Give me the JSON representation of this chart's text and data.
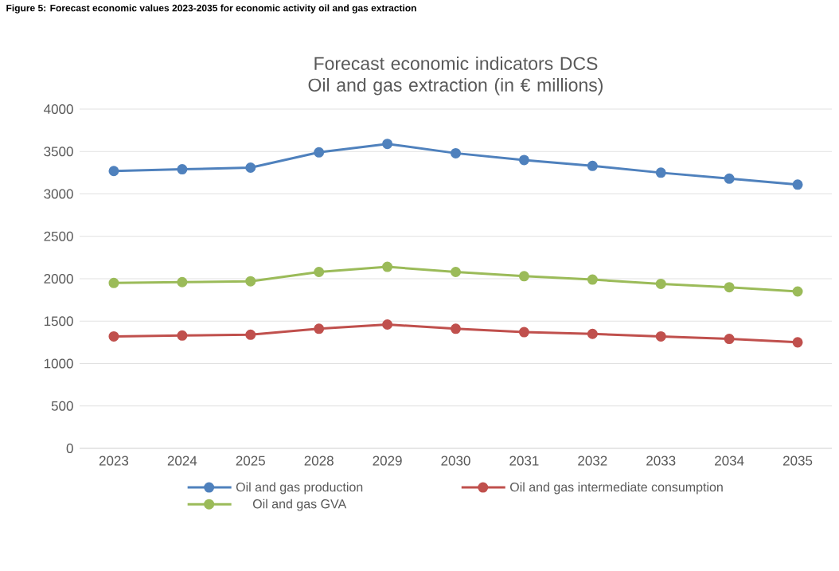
{
  "chart_data": {
    "type": "line",
    "title": "Forecast economic indicators DCS Oil and gas extraction (in € millions)",
    "annotations": [
      "Figure 5: Forecast economic values 2023-2035 for economic activity oil and gas extraction"
    ],
    "categories": [
      "2023",
      "2024",
      "2025",
      "2028",
      "2029",
      "2030",
      "2031",
      "2032",
      "2033",
      "2034",
      "2035"
    ],
    "series": [
      {
        "name": "Oil and gas production",
        "color": "#4f81bd",
        "values": [
          3270,
          3290,
          3310,
          3490,
          3590,
          3480,
          3400,
          3330,
          3250,
          3180,
          3110
        ]
      },
      {
        "name": "Oil and gas intermediate consumption",
        "color": "#c0504d",
        "values": [
          1320,
          1330,
          1340,
          1410,
          1460,
          1410,
          1370,
          1350,
          1320,
          1290,
          1250
        ]
      },
      {
        "name": "Oil and gas GVA",
        "color": "#9bbb59",
        "values": [
          1950,
          1960,
          1970,
          2080,
          2140,
          2080,
          2030,
          1990,
          1940,
          1900,
          1850
        ]
      }
    ],
    "ylim": [
      0,
      4000
    ],
    "yticks": [
      0,
      500,
      1000,
      1500,
      2000,
      2500,
      3000,
      3500,
      4000
    ],
    "grid": "y",
    "legend": "bottom",
    "marker": "circle",
    "line_style": "solid"
  }
}
